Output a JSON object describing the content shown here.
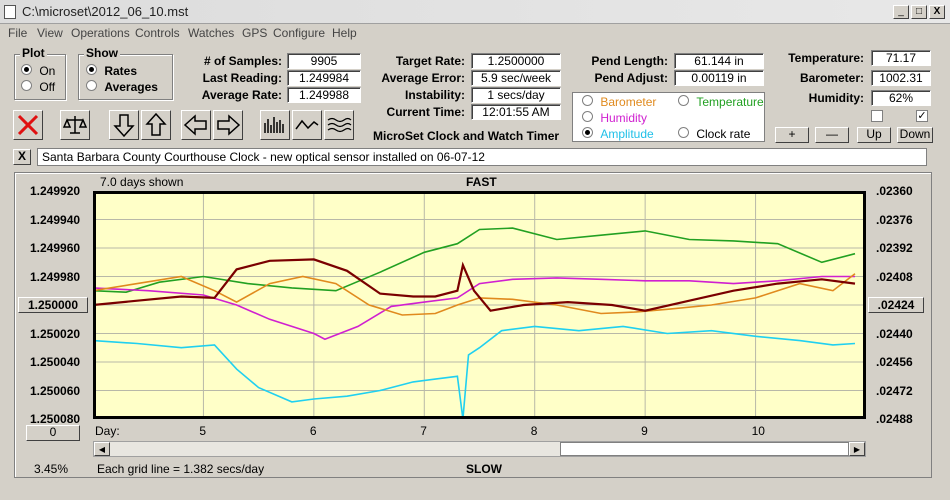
{
  "window": {
    "title": "C:\\microset\\2012_06_10.mst",
    "min": "_",
    "max": "□",
    "close": "X"
  },
  "menu": [
    "File",
    "View",
    "Operations",
    "Controls",
    "Watches",
    "GPS",
    "Configure",
    "Help"
  ],
  "plot_group": {
    "title": "Plot",
    "on": "On",
    "off": "Off",
    "selected": "On"
  },
  "show_group": {
    "title": "Show",
    "rates": "Rates",
    "averages": "Averages",
    "selected": "Rates"
  },
  "stats": {
    "samples_label": "# of Samples:",
    "samples": "9905",
    "last_reading_label": "Last Reading:",
    "last_reading": "1.249984",
    "avg_rate_label": "Average Rate:",
    "avg_rate": "1.249988",
    "target_rate_label": "Target Rate:",
    "target_rate": "1.2500000",
    "avg_error_label": "Average Error:",
    "avg_error": "5.9 sec/week",
    "instability_label": "Instability:",
    "instability": "1 secs/day",
    "current_time_label": "Current Time:",
    "current_time": "12:01:55 AM",
    "pend_length_label": "Pend Length:",
    "pend_length": "61.144 in",
    "pend_adjust_label": "Pend Adjust:",
    "pend_adjust": "0.00119 in",
    "temperature_label": "Temperature:",
    "temperature": "71.17",
    "barometer_label": "Barometer:",
    "barometer": "1002.31",
    "humidity_label": "Humidity:",
    "humidity": "62%"
  },
  "app_title": "MicroSet Clock and Watch Timer",
  "series_options": {
    "barometer": "Barometer",
    "temperature": "Temperature",
    "humidity": "Humidity",
    "amplitude": "Amplitude",
    "clock_rate": "Clock rate",
    "selected": "Amplitude"
  },
  "colors": {
    "barometer": "#e08a1e",
    "temperature": "#22a022",
    "humidity": "#d020d0",
    "amplitude": "#20d0f0",
    "clock_rate": "#7a0000",
    "plot_bg": "#ffffc8"
  },
  "adjust_buttons": {
    "plus": "+",
    "minus": "—",
    "up": "Up",
    "down": "Down"
  },
  "checkboxes": {
    "left": "",
    "right": "✓"
  },
  "note_close": "X",
  "note": "Santa Barbara County Courthouse Clock - new optical sensor installed on 06-07-12",
  "chart_header": {
    "days_shown": "7.0 days shown",
    "top_label": "FAST",
    "bottom_label": "SLOW"
  },
  "footer": {
    "zero_button": "0",
    "percent": "3.45%",
    "grid_note": "Each grid line = 1.382 secs/day",
    "day_label": "Day:"
  },
  "scrollbar": {
    "left": "◀",
    "right": "▶"
  },
  "chart_data": {
    "type": "line",
    "left_axis_ticks": [
      "1.249920",
      "1.249940",
      "1.249960",
      "1.249980",
      "1.250000",
      "1.250020",
      "1.250040",
      "1.250060",
      "1.250080"
    ],
    "right_axis_ticks": [
      ".02360",
      ".02376",
      ".02392",
      ".02408",
      ".02424",
      ".02440",
      ".02456",
      ".02472",
      ".02488"
    ],
    "highlighted_left_tick": "1.250000",
    "highlighted_right_tick": ".02424",
    "x_ticks": [
      "5",
      "6",
      "7",
      "8",
      "9",
      "10"
    ],
    "xlim": [
      4.0,
      11.0
    ],
    "ylim": [
      1.24992,
      1.25008
    ],
    "series": [
      {
        "name": "Temperature",
        "color": "#22a022",
        "x": [
          4.0,
          4.3,
          4.6,
          5.0,
          5.4,
          5.8,
          6.2,
          6.6,
          7.0,
          7.3,
          7.5,
          7.8,
          8.2,
          8.6,
          9.0,
          9.4,
          9.8,
          10.2,
          10.6,
          10.9
        ],
        "y": [
          1.24999,
          1.249991,
          1.249984,
          1.24998,
          1.249985,
          1.249988,
          1.24999,
          1.249977,
          1.249963,
          1.249957,
          1.249947,
          1.249946,
          1.249954,
          1.249951,
          1.249948,
          1.249954,
          1.249955,
          1.249957,
          1.24997,
          1.249964
        ]
      },
      {
        "name": "Humidity",
        "color": "#d020d0",
        "x": [
          4.0,
          4.5,
          5.0,
          5.3,
          5.6,
          6.0,
          6.1,
          6.4,
          6.7,
          7.0,
          7.3,
          7.5,
          7.8,
          8.2,
          8.6,
          9.0,
          9.4,
          9.8,
          10.2,
          10.6,
          10.9
        ],
        "y": [
          1.249988,
          1.24999,
          1.249993,
          1.25,
          1.25001,
          1.25002,
          1.250024,
          1.250015,
          1.250001,
          1.249998,
          1.249995,
          1.249985,
          1.249982,
          1.249981,
          1.249982,
          1.249983,
          1.249983,
          1.249985,
          1.249983,
          1.24998,
          1.24998
        ]
      },
      {
        "name": "Barometer",
        "color": "#e08a1e",
        "x": [
          4.0,
          4.4,
          4.8,
          5.1,
          5.3,
          5.6,
          5.9,
          6.2,
          6.5,
          6.8,
          7.1,
          7.3,
          7.5,
          7.8,
          8.2,
          8.6,
          8.9,
          9.2,
          9.6,
          10.0,
          10.4,
          10.7,
          10.9
        ],
        "y": [
          1.24999,
          1.249985,
          1.24998,
          1.24999,
          1.249998,
          1.249985,
          1.24998,
          1.249985,
          1.25,
          1.250007,
          1.250006,
          1.25,
          1.249995,
          1.249996,
          1.25,
          1.250006,
          1.250005,
          1.250003,
          1.25,
          1.249995,
          1.249985,
          1.24999,
          1.249978
        ]
      },
      {
        "name": "Clock rate",
        "color": "#7a0000",
        "x": [
          4.0,
          4.4,
          4.8,
          5.1,
          5.3,
          5.6,
          6.0,
          6.3,
          6.6,
          6.9,
          7.1,
          7.3,
          7.35,
          7.45,
          7.6,
          7.9,
          8.3,
          8.7,
          9.0,
          9.4,
          9.8,
          10.2,
          10.6,
          10.9
        ],
        "y": [
          1.25,
          1.249997,
          1.249994,
          1.249995,
          1.249975,
          1.249969,
          1.249968,
          1.249976,
          1.249992,
          1.249994,
          1.249994,
          1.24999,
          1.249972,
          1.24999,
          1.250004,
          1.25,
          1.249998,
          1.25,
          1.250004,
          1.249997,
          1.24999,
          1.249985,
          1.249982,
          1.249985
        ]
      },
      {
        "name": "Amplitude",
        "color": "#20d0f0",
        "x": [
          4.0,
          4.4,
          4.8,
          5.1,
          5.3,
          5.5,
          5.8,
          6.0,
          6.3,
          6.6,
          6.9,
          7.1,
          7.3,
          7.35,
          7.4,
          7.5,
          7.7,
          8.0,
          8.4,
          8.8,
          9.2,
          9.6,
          10.0,
          10.4,
          10.7,
          10.9
        ],
        "y": [
          1.250025,
          1.250027,
          1.25003,
          1.250028,
          1.250045,
          1.250058,
          1.250068,
          1.250066,
          1.250064,
          1.25006,
          1.250054,
          1.250052,
          1.25005,
          1.25008,
          1.250035,
          1.25003,
          1.250018,
          1.250015,
          1.250018,
          1.250015,
          1.25002,
          1.250018,
          1.250022,
          1.250025,
          1.250028,
          1.250027
        ]
      }
    ]
  }
}
